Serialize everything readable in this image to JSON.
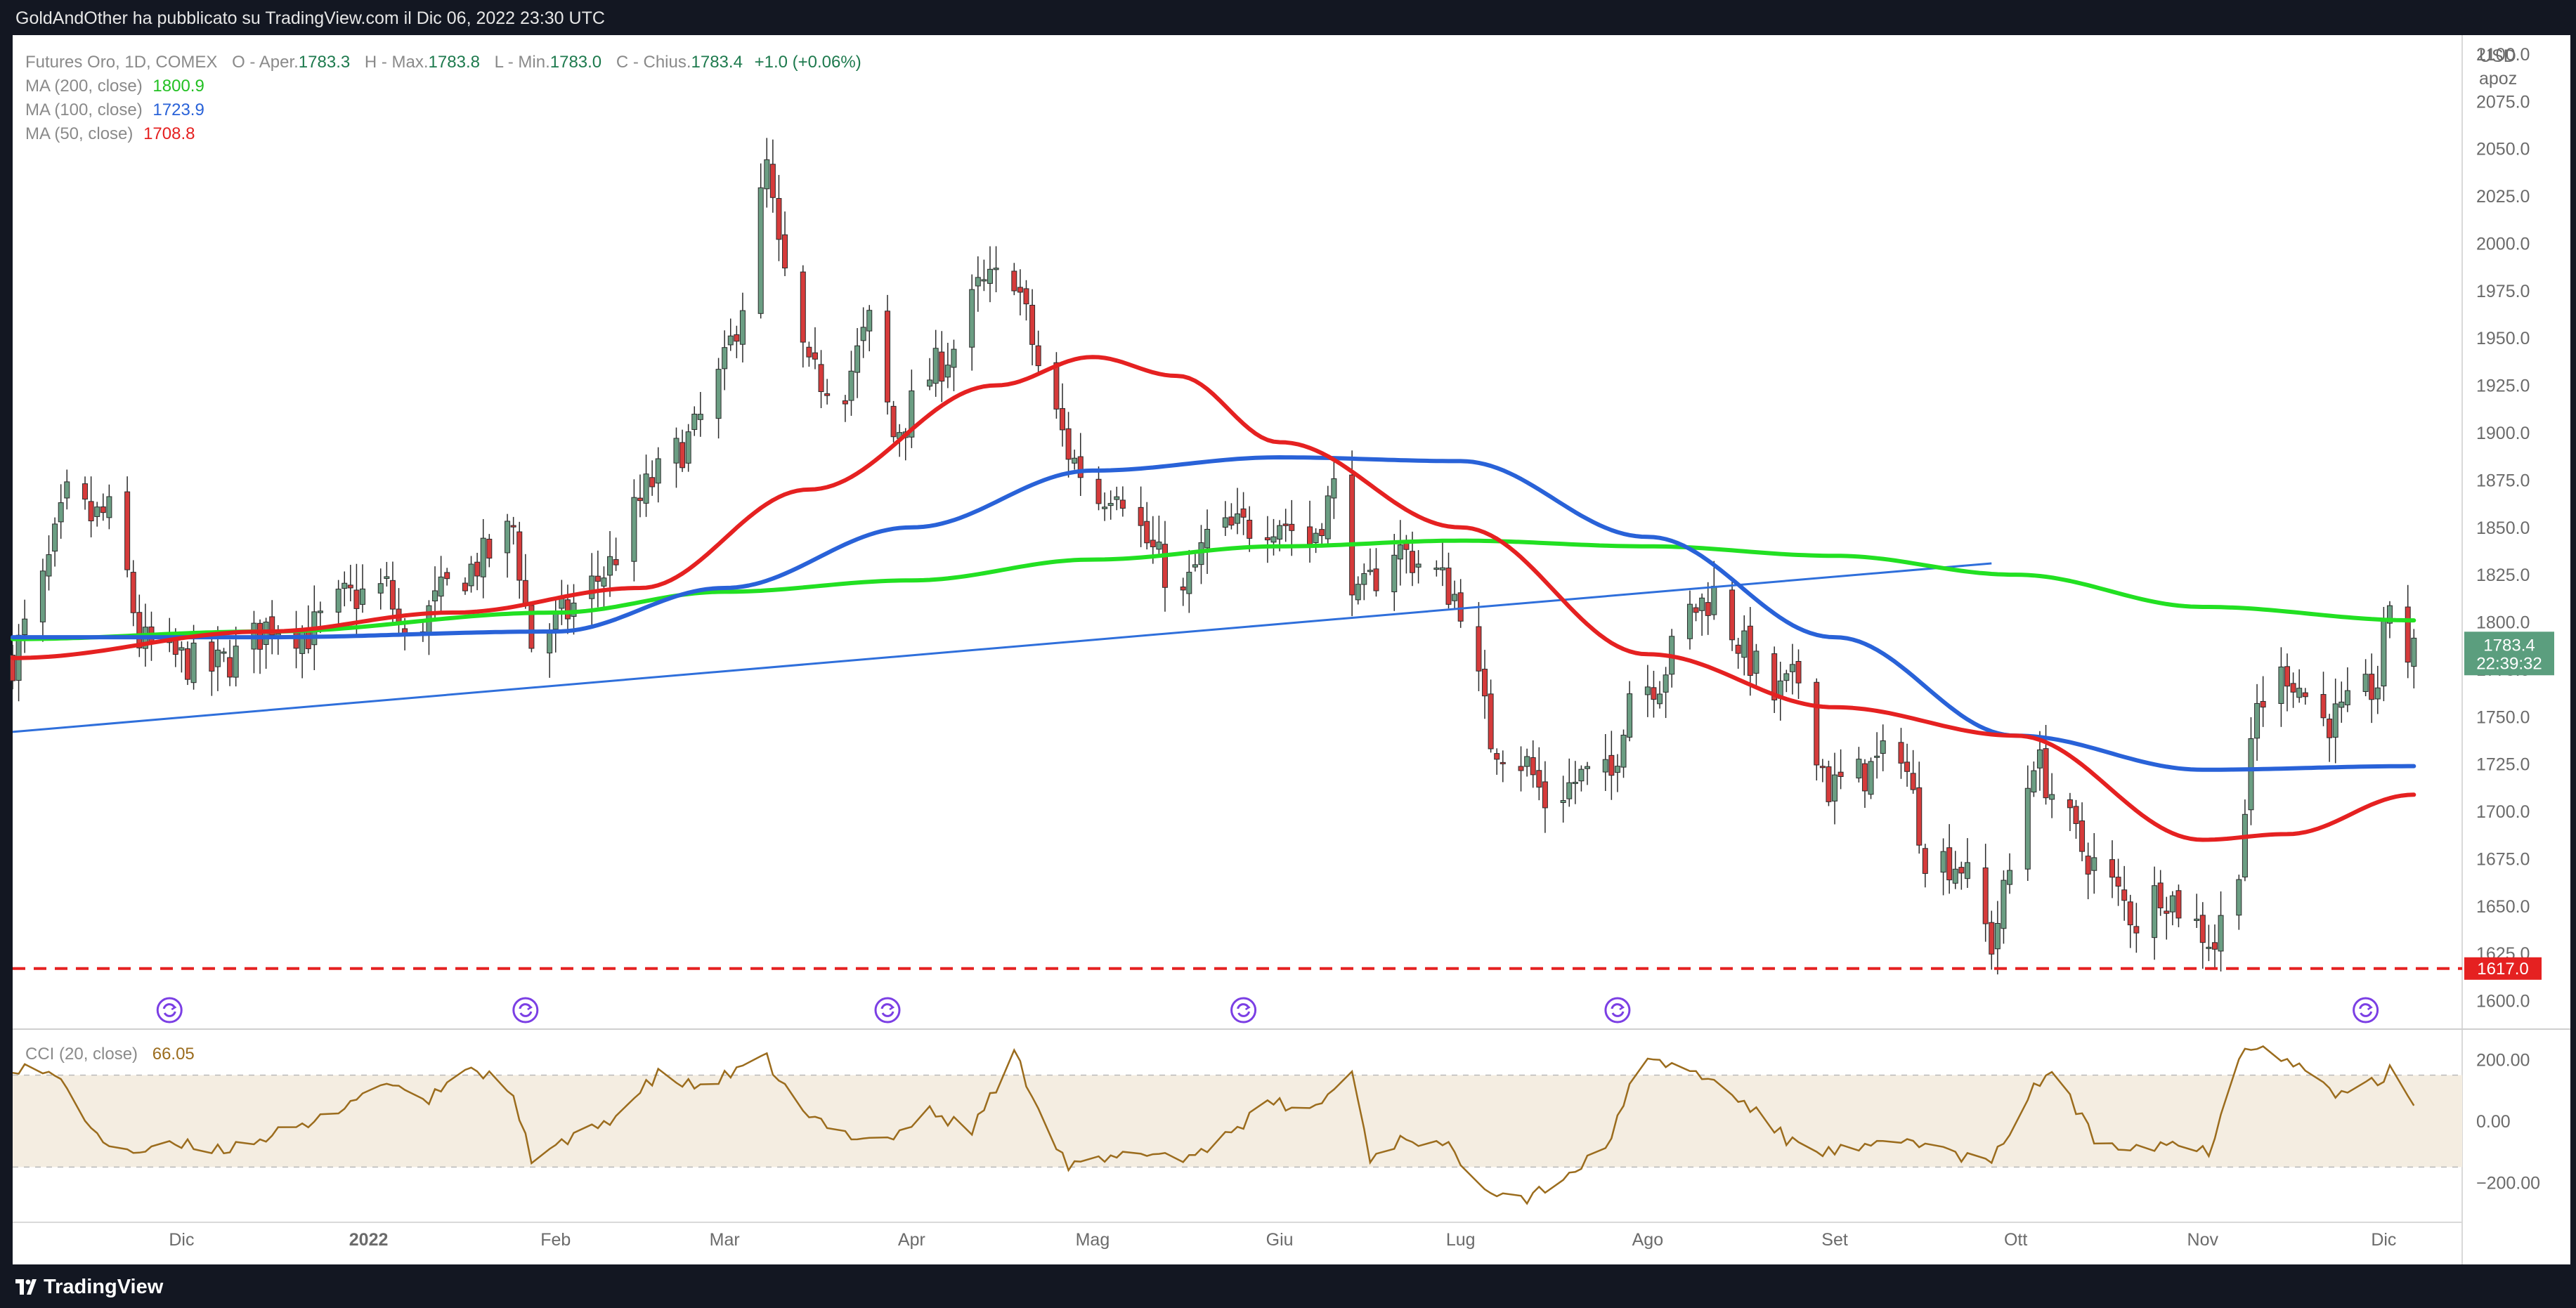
{
  "header": {
    "publisher_line": "GoldAndOther ha pubblicato su TradingView.com il Dic 06, 2022 23:30 UTC"
  },
  "footer": {
    "brand": "TradingView"
  },
  "colors": {
    "up": "#26a69a",
    "up_fill": "#6b9e83",
    "down": "#d63b3b",
    "ma200": "#22e022",
    "ma100": "#2962d8",
    "ma50": "#e52121",
    "trendline": "#2f6fdb",
    "support": "#e52121",
    "cci": "#9b6c1d",
    "cci_band": "#f4ede1"
  },
  "icons": {
    "event_markers": "dividend-circle-icon"
  },
  "chart_data": [
    {
      "type": "candlestick",
      "legend": {
        "symbol": "Futures Oro, 1D, COMEX",
        "o_label": "O - Aper.",
        "o": "1783.3",
        "h_label": "H - Max.",
        "h": "1783.8",
        "l_label": "L - Min.",
        "l": "1783.0",
        "c_label": "C - Chius.",
        "c": "1783.4",
        "change": "+1.0 (+0.06%)",
        "ma200_label": "MA (200, close)",
        "ma200_value": "1800.9",
        "ma100_label": "MA (100, close)",
        "ma100_value": "1723.9",
        "ma50_label": "MA (50, close)",
        "ma50_value": "1708.8"
      },
      "y_axis": {
        "currency": "USD",
        "unit": "apoz",
        "ylim": [
          1585,
          2110
        ],
        "ticks": [
          "2100.0",
          "2075.0",
          "2050.0",
          "2025.0",
          "2000.0",
          "1975.0",
          "1950.0",
          "1925.0",
          "1900.0",
          "1875.0",
          "1850.0",
          "1825.0",
          "1800.0",
          "1775.0",
          "1750.0",
          "1725.0",
          "1700.0",
          "1675.0",
          "1650.0",
          "1625.0",
          "1600.0"
        ]
      },
      "last_price": {
        "value": "1783.4",
        "countdown": "22:39:32"
      },
      "support_level": {
        "value": 1617.0,
        "label": "1617.0"
      },
      "trendline": {
        "start": [
          "2021-11-03",
          1742
        ],
        "end": [
          "2022-09-27",
          1831
        ]
      },
      "x_axis": {
        "labels": [
          "Dic",
          "2022",
          "Feb",
          "Mar",
          "Apr",
          "Mag",
          "Giu",
          "Lug",
          "Ago",
          "Set",
          "Ott",
          "Nov",
          "Dic"
        ],
        "dates": [
          "2021-12-01",
          "2022-01-01",
          "2022-02-01",
          "2022-03-01",
          "2022-04-01",
          "2022-05-01",
          "2022-06-01",
          "2022-07-01",
          "2022-08-01",
          "2022-09-01",
          "2022-10-01",
          "2022-11-01",
          "2022-12-01"
        ],
        "range": [
          "2021-11-03",
          "2022-12-14"
        ]
      },
      "event_dates": [
        "2021-11-29",
        "2022-01-27",
        "2022-03-28",
        "2022-05-26",
        "2022-07-27",
        "2022-11-28"
      ],
      "anchors": [
        [
          "2021-11-03",
          1780
        ],
        [
          "2021-11-08",
          1820
        ],
        [
          "2021-11-12",
          1865
        ],
        [
          "2021-11-16",
          1855
        ],
        [
          "2021-11-20",
          1858
        ],
        [
          "2021-11-24",
          1790
        ],
        [
          "2021-11-29",
          1782
        ],
        [
          "2021-12-06",
          1775
        ],
        [
          "2021-12-10",
          1782
        ],
        [
          "2021-12-16",
          1800
        ],
        [
          "2021-12-22",
          1794
        ],
        [
          "2021-12-28",
          1812
        ],
        [
          "2022-01-04",
          1818
        ],
        [
          "2022-01-07",
          1788
        ],
        [
          "2022-01-14",
          1818
        ],
        [
          "2022-01-21",
          1836
        ],
        [
          "2022-01-25",
          1850
        ],
        [
          "2022-01-28",
          1788
        ],
        [
          "2022-02-03",
          1805
        ],
        [
          "2022-02-10",
          1830
        ],
        [
          "2022-02-16",
          1870
        ],
        [
          "2022-02-24",
          1900
        ],
        [
          "2022-03-01",
          1935
        ],
        [
          "2022-03-04",
          1970
        ],
        [
          "2022-03-08",
          2040
        ],
        [
          "2022-03-10",
          1995
        ],
        [
          "2022-03-15",
          1930
        ],
        [
          "2022-03-21",
          1925
        ],
        [
          "2022-03-25",
          1958
        ],
        [
          "2022-03-29",
          1898
        ],
        [
          "2022-04-04",
          1930
        ],
        [
          "2022-04-08",
          1945
        ],
        [
          "2022-04-12",
          1975
        ],
        [
          "2022-04-18",
          1985
        ],
        [
          "2022-04-22",
          1935
        ],
        [
          "2022-04-27",
          1890
        ],
        [
          "2022-05-02",
          1865
        ],
        [
          "2022-05-05",
          1875
        ],
        [
          "2022-05-10",
          1842
        ],
        [
          "2022-05-16",
          1812
        ],
        [
          "2022-05-20",
          1845
        ],
        [
          "2022-05-26",
          1850
        ],
        [
          "2022-06-01",
          1855
        ],
        [
          "2022-06-06",
          1842
        ],
        [
          "2022-06-10",
          1870
        ],
        [
          "2022-06-14",
          1810
        ],
        [
          "2022-06-20",
          1840
        ],
        [
          "2022-06-27",
          1825
        ],
        [
          "2022-07-01",
          1810
        ],
        [
          "2022-07-06",
          1738
        ],
        [
          "2022-07-12",
          1725
        ],
        [
          "2022-07-15",
          1705
        ],
        [
          "2022-07-21",
          1718
        ],
        [
          "2022-07-26",
          1718
        ],
        [
          "2022-07-29",
          1765
        ],
        [
          "2022-08-03",
          1770
        ],
        [
          "2022-08-08",
          1805
        ],
        [
          "2022-08-12",
          1815
        ],
        [
          "2022-08-16",
          1790
        ],
        [
          "2022-08-22",
          1760
        ],
        [
          "2022-08-26",
          1770
        ],
        [
          "2022-08-31",
          1712
        ],
        [
          "2022-09-06",
          1720
        ],
        [
          "2022-09-12",
          1735
        ],
        [
          "2022-09-16",
          1678
        ],
        [
          "2022-09-22",
          1672
        ],
        [
          "2022-09-27",
          1630
        ],
        [
          "2022-09-30",
          1668
        ],
        [
          "2022-10-04",
          1730
        ],
        [
          "2022-10-07",
          1710
        ],
        [
          "2022-10-12",
          1680
        ],
        [
          "2022-10-17",
          1660
        ],
        [
          "2022-10-21",
          1642
        ],
        [
          "2022-10-25",
          1660
        ],
        [
          "2022-10-28",
          1650
        ],
        [
          "2022-11-03",
          1630
        ],
        [
          "2022-11-07",
          1675
        ],
        [
          "2022-11-10",
          1755
        ],
        [
          "2022-11-15",
          1775
        ],
        [
          "2022-11-21",
          1748
        ],
        [
          "2022-11-24",
          1750
        ],
        [
          "2022-11-30",
          1768
        ],
        [
          "2022-12-02",
          1812
        ],
        [
          "2022-12-05",
          1782
        ],
        [
          "2022-12-06",
          1783
        ]
      ],
      "ma": {
        "ma200": [
          [
            "2021-11-03",
            1791
          ],
          [
            "2021-12-15",
            1795
          ],
          [
            "2022-02-01",
            1805
          ],
          [
            "2022-03-01",
            1816
          ],
          [
            "2022-04-01",
            1822
          ],
          [
            "2022-05-01",
            1833
          ],
          [
            "2022-06-01",
            1840
          ],
          [
            "2022-07-01",
            1843
          ],
          [
            "2022-08-01",
            1840
          ],
          [
            "2022-09-01",
            1835
          ],
          [
            "2022-10-01",
            1825
          ],
          [
            "2022-11-01",
            1808
          ],
          [
            "2022-12-06",
            1800.9
          ]
        ],
        "ma100": [
          [
            "2021-11-03",
            1792
          ],
          [
            "2021-12-15",
            1792
          ],
          [
            "2022-02-01",
            1795
          ],
          [
            "2022-03-01",
            1818
          ],
          [
            "2022-04-01",
            1850
          ],
          [
            "2022-05-01",
            1880
          ],
          [
            "2022-06-01",
            1887
          ],
          [
            "2022-07-01",
            1885
          ],
          [
            "2022-08-01",
            1845
          ],
          [
            "2022-09-01",
            1792
          ],
          [
            "2022-10-01",
            1740
          ],
          [
            "2022-11-01",
            1722
          ],
          [
            "2022-12-06",
            1723.9
          ]
        ],
        "ma50": [
          [
            "2021-11-03",
            1781
          ],
          [
            "2021-12-15",
            1795
          ],
          [
            "2022-01-15",
            1805
          ],
          [
            "2022-02-15",
            1818
          ],
          [
            "2022-03-15",
            1870
          ],
          [
            "2022-04-15",
            1925
          ],
          [
            "2022-05-01",
            1940
          ],
          [
            "2022-05-15",
            1930
          ],
          [
            "2022-06-01",
            1895
          ],
          [
            "2022-07-01",
            1850
          ],
          [
            "2022-08-01",
            1783
          ],
          [
            "2022-09-01",
            1755
          ],
          [
            "2022-10-01",
            1740
          ],
          [
            "2022-11-01",
            1685
          ],
          [
            "2022-11-15",
            1688
          ],
          [
            "2022-12-06",
            1708.8
          ]
        ]
      }
    },
    {
      "type": "line",
      "series": [
        {
          "name": "CCI (20, close)",
          "last_value": "66.05"
        }
      ],
      "y_axis": {
        "ylim": [
          -330,
          300
        ],
        "ticks": [
          "200.00",
          "0.00",
          "−200.00"
        ],
        "band": [
          -150,
          150
        ]
      },
      "anchors": [
        [
          "2021-11-03",
          180
        ],
        [
          "2021-11-08",
          160
        ],
        [
          "2021-11-12",
          120
        ],
        [
          "2021-11-17",
          -60
        ],
        [
          "2021-11-24",
          -100
        ],
        [
          "2021-12-01",
          -80
        ],
        [
          "2021-12-08",
          -90
        ],
        [
          "2021-12-15",
          -50
        ],
        [
          "2021-12-22",
          -20
        ],
        [
          "2021-12-30",
          80
        ],
        [
          "2022-01-05",
          130
        ],
        [
          "2022-01-10",
          50
        ],
        [
          "2022-01-17",
          180
        ],
        [
          "2022-01-24",
          120
        ],
        [
          "2022-01-28",
          -120
        ],
        [
          "2022-02-04",
          -60
        ],
        [
          "2022-02-11",
          20
        ],
        [
          "2022-02-18",
          150
        ],
        [
          "2022-02-24",
          110
        ],
        [
          "2022-03-02",
          150
        ],
        [
          "2022-03-08",
          200
        ],
        [
          "2022-03-14",
          20
        ],
        [
          "2022-03-21",
          -40
        ],
        [
          "2022-03-28",
          -60
        ],
        [
          "2022-04-04",
          30
        ],
        [
          "2022-04-11",
          -30
        ],
        [
          "2022-04-18",
          220
        ],
        [
          "2022-04-22",
          50
        ],
        [
          "2022-04-27",
          -150
        ],
        [
          "2022-05-03",
          -130
        ],
        [
          "2022-05-10",
          -100
        ],
        [
          "2022-05-17",
          -120
        ],
        [
          "2022-05-24",
          -30
        ],
        [
          "2022-05-31",
          60
        ],
        [
          "2022-06-06",
          30
        ],
        [
          "2022-06-13",
          160
        ],
        [
          "2022-06-16",
          -120
        ],
        [
          "2022-06-22",
          -50
        ],
        [
          "2022-06-29",
          -90
        ],
        [
          "2022-07-06",
          -220
        ],
        [
          "2022-07-12",
          -250
        ],
        [
          "2022-07-18",
          -180
        ],
        [
          "2022-07-25",
          -100
        ],
        [
          "2022-07-30",
          180
        ],
        [
          "2022-08-04",
          190
        ],
        [
          "2022-08-10",
          150
        ],
        [
          "2022-08-17",
          60
        ],
        [
          "2022-08-24",
          -60
        ],
        [
          "2022-08-31",
          -100
        ],
        [
          "2022-09-07",
          -90
        ],
        [
          "2022-09-14",
          -60
        ],
        [
          "2022-09-21",
          -110
        ],
        [
          "2022-09-27",
          -140
        ],
        [
          "2022-10-03",
          80
        ],
        [
          "2022-10-07",
          170
        ],
        [
          "2022-10-14",
          -60
        ],
        [
          "2022-10-21",
          -80
        ],
        [
          "2022-10-27",
          -70
        ],
        [
          "2022-11-02",
          -100
        ],
        [
          "2022-11-07",
          220
        ],
        [
          "2022-11-11",
          260
        ],
        [
          "2022-11-18",
          160
        ],
        [
          "2022-11-24",
          80
        ],
        [
          "2022-11-30",
          130
        ],
        [
          "2022-12-02",
          160
        ],
        [
          "2022-12-06",
          66
        ]
      ]
    }
  ]
}
